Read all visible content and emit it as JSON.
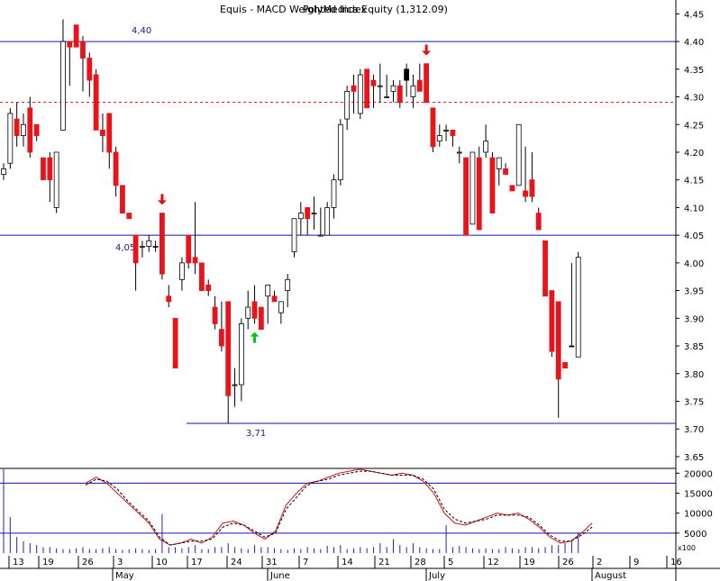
{
  "chart_data": {
    "type": "candlestick",
    "title": "Equis - MACD Weighted Index",
    "title_overlay": "PolyMedica Equity (1,312.09)",
    "y_ticks": [
      "4.45",
      "4.40",
      "4.35",
      "4.30",
      "4.25",
      "4.20",
      "4.15",
      "4.10",
      "4.05",
      "4.00",
      "3.95",
      "3.90",
      "3.85",
      "3.80",
      "3.75",
      "3.70",
      "3.65"
    ],
    "ylim": [
      3.645,
      4.475
    ],
    "levels": [
      {
        "value": 4.4,
        "label": "4,40",
        "style": "solid"
      },
      {
        "value": 4.05,
        "label": "4,05",
        "style": "solid"
      },
      {
        "value": 3.71,
        "label": "3,71",
        "style": "solid"
      },
      {
        "value": 4.29,
        "label": "",
        "style": "dotted"
      }
    ],
    "x_day_labels": [
      "13",
      "19",
      "26",
      "3",
      "10",
      "17",
      "24",
      "31",
      "7",
      "14",
      "21",
      "28",
      "5",
      "12",
      "19",
      "26",
      "2",
      "9",
      "16"
    ],
    "x_month_labels": [
      "May",
      "June",
      "July",
      "August"
    ],
    "candles": [
      [
        4.16,
        4.18,
        4.15,
        4.17
      ],
      [
        4.18,
        4.28,
        4.17,
        4.27
      ],
      [
        4.26,
        4.29,
        4.21,
        4.23
      ],
      [
        4.23,
        4.27,
        4.21,
        4.25
      ],
      [
        4.28,
        4.3,
        4.19,
        4.2
      ],
      [
        4.25,
        4.25,
        4.22,
        4.23
      ],
      [
        4.19,
        4.19,
        4.15,
        4.15
      ],
      [
        4.19,
        4.2,
        4.11,
        4.15
      ],
      [
        4.1,
        4.2,
        4.09,
        4.2
      ],
      [
        4.24,
        4.44,
        4.24,
        4.4
      ],
      [
        4.4,
        4.4,
        4.32,
        4.39
      ],
      [
        4.43,
        4.43,
        4.39,
        4.39
      ],
      [
        4.4,
        4.41,
        4.31,
        4.37
      ],
      [
        4.37,
        4.38,
        4.3,
        4.33
      ],
      [
        4.34,
        4.35,
        4.24,
        4.24
      ],
      [
        4.24,
        4.27,
        4.2,
        4.23
      ],
      [
        4.27,
        4.27,
        4.17,
        4.2
      ],
      [
        4.2,
        4.21,
        4.12,
        4.14
      ],
      [
        4.14,
        4.14,
        4.09,
        4.09
      ],
      [
        4.09,
        4.09,
        4.08,
        4.08
      ],
      [
        4.05,
        4.05,
        3.95,
        4.0
      ],
      [
        4.03,
        4.04,
        4.01,
        4.03
      ],
      [
        4.03,
        4.05,
        4.02,
        4.04
      ],
      [
        4.03,
        4.04,
        4.02,
        4.03
      ],
      [
        4.09,
        4.09,
        3.97,
        3.98
      ],
      [
        3.94,
        3.96,
        3.92,
        3.93
      ],
      [
        3.9,
        3.9,
        3.81,
        3.81
      ],
      [
        3.97,
        4.01,
        3.95,
        4.0
      ],
      [
        4.05,
        4.05,
        3.99,
        4.0
      ],
      [
        4.01,
        4.11,
        3.98,
        4.0
      ],
      [
        4.0,
        4.0,
        3.95,
        3.95
      ],
      [
        3.96,
        3.97,
        3.94,
        3.95
      ],
      [
        3.92,
        3.94,
        3.88,
        3.89
      ],
      [
        3.88,
        3.93,
        3.84,
        3.85
      ],
      [
        3.93,
        3.93,
        3.71,
        3.76
      ],
      [
        3.78,
        3.81,
        3.74,
        3.78
      ],
      [
        3.78,
        3.9,
        3.75,
        3.89
      ],
      [
        3.9,
        3.95,
        3.88,
        3.92
      ],
      [
        3.93,
        3.96,
        3.89,
        3.9
      ],
      [
        3.92,
        3.92,
        3.88,
        3.88
      ],
      [
        3.94,
        3.96,
        3.89,
        3.96
      ],
      [
        3.94,
        3.95,
        3.93,
        3.93
      ],
      [
        3.91,
        3.93,
        3.89,
        3.93
      ],
      [
        3.95,
        3.98,
        3.92,
        3.97
      ],
      [
        4.02,
        4.08,
        4.01,
        4.08
      ],
      [
        4.08,
        4.11,
        4.05,
        4.09
      ],
      [
        4.1,
        4.1,
        4.05,
        4.08
      ],
      [
        4.09,
        4.12,
        4.06,
        4.09
      ],
      [
        4.05,
        4.1,
        4.05,
        4.05
      ],
      [
        4.05,
        4.11,
        4.05,
        4.1
      ],
      [
        4.1,
        4.16,
        4.08,
        4.15
      ],
      [
        4.15,
        4.26,
        4.14,
        4.25
      ],
      [
        4.26,
        4.32,
        4.24,
        4.31
      ],
      [
        4.32,
        4.34,
        4.27,
        4.31
      ],
      [
        4.27,
        4.35,
        4.26,
        4.34
      ],
      [
        4.35,
        4.35,
        4.28,
        4.28
      ],
      [
        4.33,
        4.34,
        4.28,
        4.32
      ],
      [
        4.32,
        4.36,
        4.29,
        4.32
      ],
      [
        4.3,
        4.34,
        4.3,
        4.3
      ],
      [
        4.31,
        4.33,
        4.29,
        4.32
      ],
      [
        4.32,
        4.33,
        4.28,
        4.29
      ],
      [
        4.33,
        4.36,
        4.3,
        4.35
      ],
      [
        4.3,
        4.34,
        4.28,
        4.32
      ],
      [
        4.33,
        4.36,
        4.31,
        4.31
      ],
      [
        4.36,
        4.36,
        4.29,
        4.29
      ],
      [
        4.28,
        4.28,
        4.2,
        4.21
      ],
      [
        4.22,
        4.25,
        4.21,
        4.23
      ],
      [
        4.24,
        4.25,
        4.22,
        4.24
      ],
      [
        4.24,
        4.24,
        4.21,
        4.23
      ],
      [
        4.2,
        4.21,
        4.18,
        4.2
      ],
      [
        4.19,
        4.19,
        4.05,
        4.05
      ],
      [
        4.07,
        4.2,
        4.07,
        4.2
      ],
      [
        4.19,
        4.21,
        4.06,
        4.06
      ],
      [
        4.2,
        4.25,
        4.19,
        4.22
      ],
      [
        4.19,
        4.2,
        4.09,
        4.09
      ],
      [
        4.17,
        4.19,
        4.14,
        4.19
      ],
      [
        4.17,
        4.18,
        4.16,
        4.16
      ],
      [
        4.14,
        4.14,
        4.13,
        4.13
      ],
      [
        4.14,
        4.25,
        4.14,
        4.25
      ],
      [
        4.13,
        4.21,
        4.11,
        4.12
      ],
      [
        4.15,
        4.2,
        4.11,
        4.12
      ],
      [
        4.09,
        4.1,
        4.06,
        4.06
      ],
      [
        4.04,
        4.04,
        3.94,
        3.94
      ],
      [
        3.95,
        3.95,
        3.83,
        3.84
      ],
      [
        3.93,
        3.93,
        3.72,
        3.79
      ],
      [
        3.82,
        3.82,
        3.81,
        3.81
      ],
      [
        3.85,
        4.0,
        3.85,
        3.85
      ],
      [
        3.83,
        4.02,
        3.83,
        4.01
      ]
    ],
    "indicator": {
      "y_ticks": [
        "20000",
        "15000",
        "10000",
        "5000"
      ],
      "ylim": [
        0,
        23000
      ],
      "reference_levels": [
        17500,
        5000
      ],
      "unit_label": "x100",
      "volume": [
        21000,
        9000,
        4000,
        3000,
        2500,
        2000,
        1500,
        1500,
        1200,
        1000,
        1000,
        1200,
        1500,
        1000,
        1000,
        1200,
        1500,
        1000,
        800,
        1000,
        1200,
        1000,
        800,
        1000,
        9800,
        1500,
        1500,
        1200,
        1500,
        2000,
        1000,
        1000,
        1500,
        1500,
        2500,
        1500,
        1200,
        1000,
        2000,
        1500,
        1500,
        1200,
        1000,
        800,
        1200,
        1000,
        1500,
        1200,
        1000,
        1800,
        1500,
        2000,
        1000,
        1200,
        1500,
        1200,
        1500,
        2500,
        1500,
        3500,
        2000,
        1500,
        2500,
        1500,
        1200,
        1000,
        1000,
        7000,
        1500,
        1800,
        1500,
        1200,
        1000,
        1200,
        1000,
        1000,
        1500,
        1200,
        1000,
        1500,
        1500,
        1200,
        1500,
        2000,
        2000,
        2500,
        3000,
        5200
      ],
      "line_solid": [
        17500,
        19000,
        17500,
        15000,
        12500,
        10000,
        7500,
        3500,
        2000,
        2500,
        3500,
        2500,
        4000,
        7500,
        8000,
        7000,
        5000,
        3500,
        5500,
        12000,
        15000,
        17500,
        18000,
        19000,
        20000,
        20500,
        21000,
        20500,
        20000,
        19500,
        20000,
        19500,
        18000,
        15000,
        10000,
        7500,
        7000,
        8000,
        9000,
        10000,
        9500,
        10000,
        8500,
        6500,
        4000,
        2500,
        3000,
        5000,
        7500
      ],
      "line_dashed": [
        17000,
        18500,
        18000,
        16000,
        13000,
        10500,
        8000,
        4000,
        2000,
        2500,
        3000,
        3000,
        3500,
        6500,
        7500,
        7000,
        5500,
        4000,
        5000,
        11000,
        14000,
        17000,
        18000,
        18500,
        19500,
        20000,
        20500,
        20500,
        20000,
        19500,
        19500,
        19500,
        18500,
        16000,
        11000,
        8500,
        7500,
        8000,
        8500,
        9500,
        9500,
        9500,
        9000,
        7000,
        4500,
        3000,
        3000,
        4500,
        6500
      ]
    },
    "annotations": [
      {
        "type": "sell-arrow",
        "bar": 24,
        "value": 4.105
      },
      {
        "type": "buy-arrow",
        "bar": 38,
        "value": 3.875
      },
      {
        "type": "sell-arrow",
        "bar": 64,
        "value": 4.375
      }
    ]
  },
  "colors": {
    "up_body": "#ffffff",
    "down_body": "#e8141c",
    "neutral_body": "#000000",
    "wick": "#000000",
    "level_line": "#1010b4",
    "dotted_level": "#d01010",
    "indicator_solid": "#d01010",
    "indicator_dashed": "#000000",
    "volume": "#2020c8",
    "sell_arrow": "#e01010",
    "buy_arrow": "#10c010",
    "axis_text": "#000000",
    "level_label": "#1a1a9a"
  }
}
